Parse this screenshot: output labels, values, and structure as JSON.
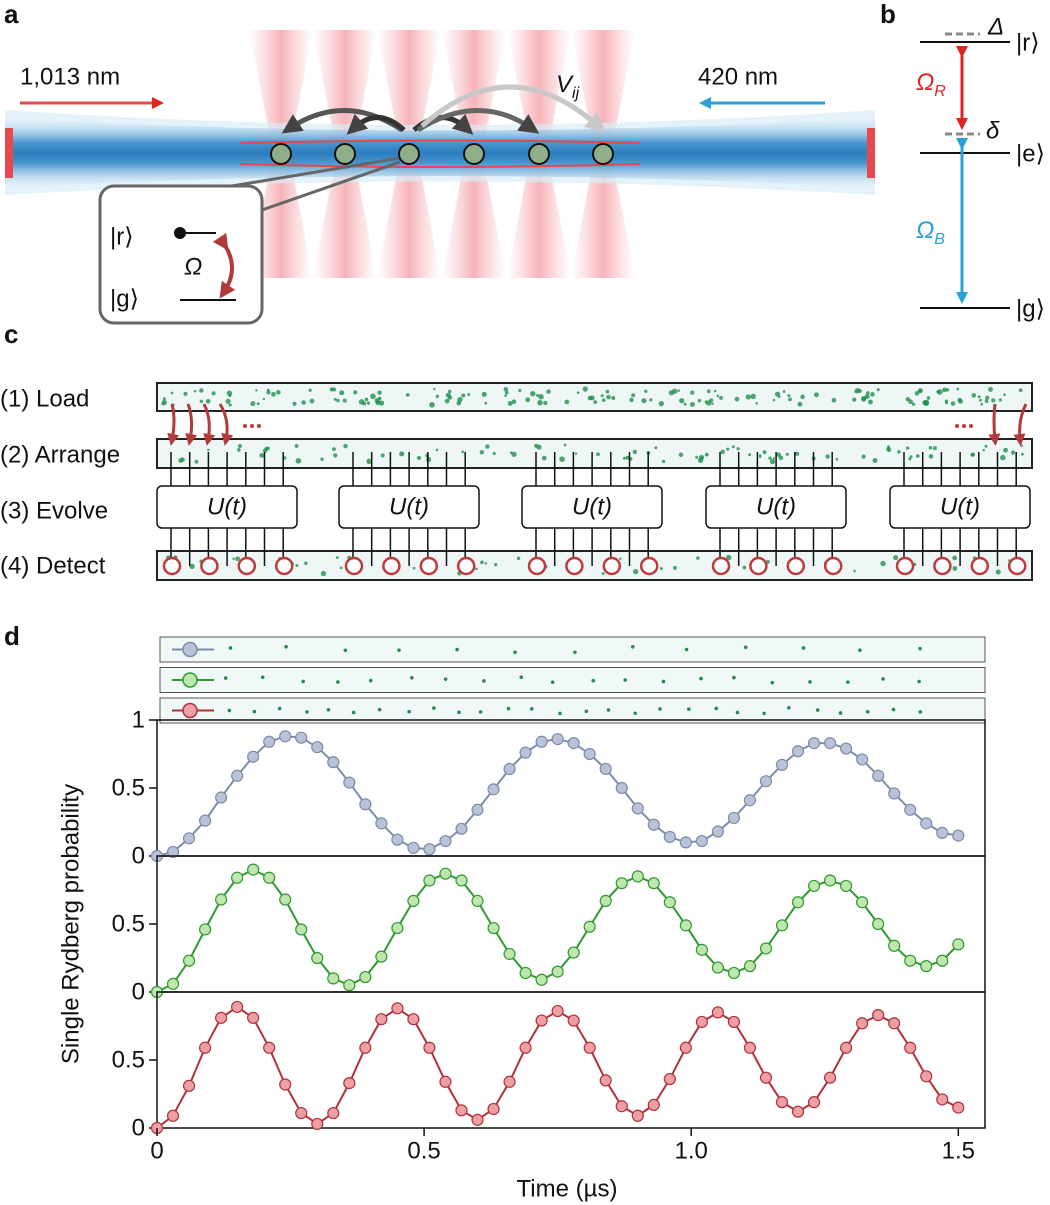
{
  "panel_a": {
    "label": "a",
    "red_laser": "1,013 nm",
    "blue_laser": "420 nm",
    "interaction": {
      "symbol": "V",
      "sub": "ij"
    },
    "inset": {
      "upper": "|r⟩",
      "lower": "|g⟩",
      "coupling": "Ω"
    }
  },
  "panel_b": {
    "label": "b",
    "detuning_large": "Δ",
    "rydberg": "|r⟩",
    "detuning_small": "δ",
    "intermediate": "|e⟩",
    "red_coupling": {
      "symbol": "Ω",
      "sub": "R"
    },
    "blue_coupling": {
      "symbol": "Ω",
      "sub": "B"
    },
    "ground": "|g⟩"
  },
  "panel_c": {
    "label": "c",
    "steps": [
      "(1) Load",
      "(2) Arrange",
      "(3) Evolve",
      "(4) Detect"
    ],
    "unitaries": [
      "U(t)",
      "U(t)",
      "U(t)",
      "U(t)",
      "U(t)"
    ]
  },
  "chart_data": {
    "label": "d",
    "type": "line",
    "xlabel": "Time (µs)",
    "ylabel": "Single Rydberg probability",
    "x": [
      0,
      0.03,
      0.06,
      0.09,
      0.12,
      0.15,
      0.18,
      0.21,
      0.24,
      0.27,
      0.3,
      0.33,
      0.36,
      0.39,
      0.42,
      0.45,
      0.48,
      0.51,
      0.54,
      0.57,
      0.6,
      0.63,
      0.66,
      0.69,
      0.72,
      0.75,
      0.78,
      0.81,
      0.84,
      0.87,
      0.9,
      0.93,
      0.96,
      0.99,
      1.02,
      1.05,
      1.08,
      1.11,
      1.14,
      1.17,
      1.2,
      1.23,
      1.26,
      1.29,
      1.32,
      1.35,
      1.38,
      1.41,
      1.44,
      1.47,
      1.5
    ],
    "xlim": [
      0,
      1.55
    ],
    "xticks": [
      0,
      0.5,
      {
        "value": 1,
        "label": "1.0"
      },
      1.5
    ],
    "ylim": [
      0,
      1
    ],
    "series": [
      {
        "color": "#7d8cab",
        "marker_fill": "#b9c3d8",
        "yticks": [
          0,
          0.5,
          1
        ],
        "values": [
          0,
          0.03,
          0.13,
          0.26,
          0.43,
          0.59,
          0.73,
          0.84,
          0.88,
          0.87,
          0.8,
          0.69,
          0.54,
          0.38,
          0.24,
          0.12,
          0.06,
          0.05,
          0.11,
          0.2,
          0.34,
          0.49,
          0.64,
          0.76,
          0.84,
          0.86,
          0.83,
          0.75,
          0.64,
          0.5,
          0.35,
          0.23,
          0.14,
          0.1,
          0.11,
          0.18,
          0.28,
          0.41,
          0.55,
          0.67,
          0.77,
          0.83,
          0.83,
          0.79,
          0.71,
          0.59,
          0.46,
          0.34,
          0.24,
          0.17,
          0.15
        ]
      },
      {
        "color": "#2f9a2f",
        "marker_fill": "#bfe6ae",
        "yticks": [
          0,
          0.5
        ],
        "values": [
          0,
          0.06,
          0.23,
          0.46,
          0.68,
          0.84,
          0.9,
          0.84,
          0.68,
          0.46,
          0.25,
          0.1,
          0.05,
          0.11,
          0.26,
          0.47,
          0.67,
          0.82,
          0.87,
          0.82,
          0.67,
          0.47,
          0.28,
          0.14,
          0.09,
          0.15,
          0.29,
          0.48,
          0.67,
          0.8,
          0.85,
          0.8,
          0.66,
          0.49,
          0.31,
          0.18,
          0.14,
          0.19,
          0.32,
          0.49,
          0.66,
          0.78,
          0.82,
          0.78,
          0.66,
          0.5,
          0.34,
          0.23,
          0.19,
          0.23,
          0.35
        ]
      },
      {
        "color": "#b3303a",
        "marker_fill": "#eca0a4",
        "yticks": [
          0,
          0.5
        ],
        "values": [
          0,
          0.09,
          0.31,
          0.59,
          0.81,
          0.89,
          0.81,
          0.59,
          0.32,
          0.11,
          0.03,
          0.11,
          0.33,
          0.59,
          0.8,
          0.88,
          0.8,
          0.59,
          0.34,
          0.13,
          0.06,
          0.14,
          0.34,
          0.59,
          0.79,
          0.86,
          0.79,
          0.59,
          0.35,
          0.16,
          0.09,
          0.17,
          0.36,
          0.59,
          0.78,
          0.85,
          0.78,
          0.59,
          0.37,
          0.19,
          0.12,
          0.19,
          0.37,
          0.59,
          0.77,
          0.83,
          0.77,
          0.59,
          0.38,
          0.21,
          0.15
        ]
      }
    ]
  }
}
